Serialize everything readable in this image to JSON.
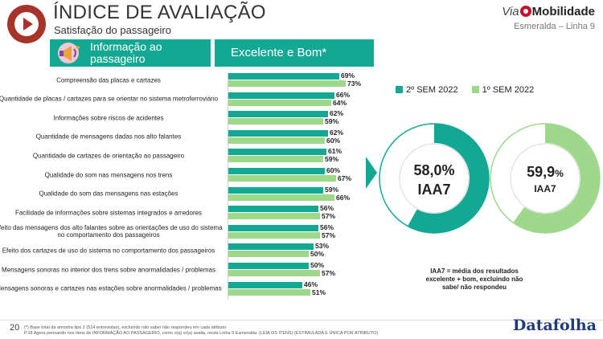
{
  "header": {
    "title": "ÍNDICE DE AVALIAÇÃO",
    "subtitle": "Satisfação do passageiro",
    "brand_via": "Via",
    "brand_mobilidade": "Mobilidade",
    "line": "Esmeralda – Linha 9"
  },
  "table_header": {
    "left": "Informação ao passageiro",
    "right": "Excelente e Bom*"
  },
  "legend": {
    "s1": "2º SEM 2022",
    "s2": "1º SEM 2022"
  },
  "colors": {
    "series1": "#13a893",
    "series2": "#9ed88a",
    "accent_logo": "#a8332a",
    "brand_red": "#c8102e",
    "datafolha": "#1e3a7a"
  },
  "chart_data": [
    {
      "type": "bar",
      "orientation": "horizontal",
      "categories": [
        "Compreensão das placas e cartazes",
        "Quantidade de placas / cartazes para se orientar no sistema metroferroviário",
        "Informações sobre riscos de acidentes",
        "Quantidade de mensagens dadas nos alto falantes",
        "Quantidade de cartazes de orientação ao passageiro",
        "Qualidade do som nas mensagens nos trens",
        "Qualidade do som das mensagens nas estações",
        "Facilidade de informações sobre sistemas integrados e arredores",
        "Efeito das mensagens dos alto falantes sobre as orientações de uso do sistema no comportamento dos passageiros",
        "Efeito dos cartazes de uso do sistema no comportamento dos passageiros",
        "Mensagens sonoras no interior dos trens sobre anormalidades / problemas",
        "Mensagens sonoras e cartazes nas estações sobre anormalidades / problemas"
      ],
      "series": [
        {
          "name": "2º SEM 2022",
          "values": [
            69,
            66,
            62,
            62,
            61,
            60,
            59,
            56,
            56,
            53,
            50,
            46
          ],
          "labels": [
            "69%",
            "66%",
            "62%",
            "62%",
            "61%",
            "60%",
            "59%",
            "56%",
            "56%",
            "53%",
            "50%",
            "46%"
          ]
        },
        {
          "name": "1º SEM 2022",
          "values": [
            73,
            64,
            59,
            60,
            59,
            67,
            66,
            57,
            57,
            50,
            57,
            51
          ],
          "labels": [
            "73%",
            "64%",
            "59%",
            "60%",
            "59%",
            "67%",
            "66%",
            "57%",
            "57%",
            "50%",
            "57%",
            "51%"
          ]
        }
      ],
      "unit": "%"
    },
    {
      "type": "pie",
      "variant": "donut",
      "series_name": "2º SEM 2022",
      "value": 58.0,
      "value_label": "58,0%",
      "label": "IAA7"
    },
    {
      "type": "pie",
      "variant": "donut",
      "series_name": "1º SEM 2022",
      "value": 59.9,
      "value_label_num": "59,9",
      "value_label_pct": "%",
      "label": "IAA7"
    }
  ],
  "note": "IAA7 = média dos resultados excelente + bom, excluindo não sabe/ não respondeu",
  "footer": {
    "page": "20",
    "line1": "(*) Base total da amostra tipo 2 (514 entrevistas), excluindo não sabe/ não respondeu em cada atributo",
    "line2": "P.18 Agora pensando nos itens de INFORMAÇÃO AO PASSAGEIRO, como o(a) sr(a) avalia, nesta Linha 9 Esmeralda: (LEIA OS ITENS) (ESTIMULADA E ÚNICA POR ATRIBUTO)",
    "source": "Datafolha"
  },
  "icons": [
    "play-icon",
    "megaphone-icon",
    "brand-dot-icon",
    "chevron-right-icon"
  ]
}
